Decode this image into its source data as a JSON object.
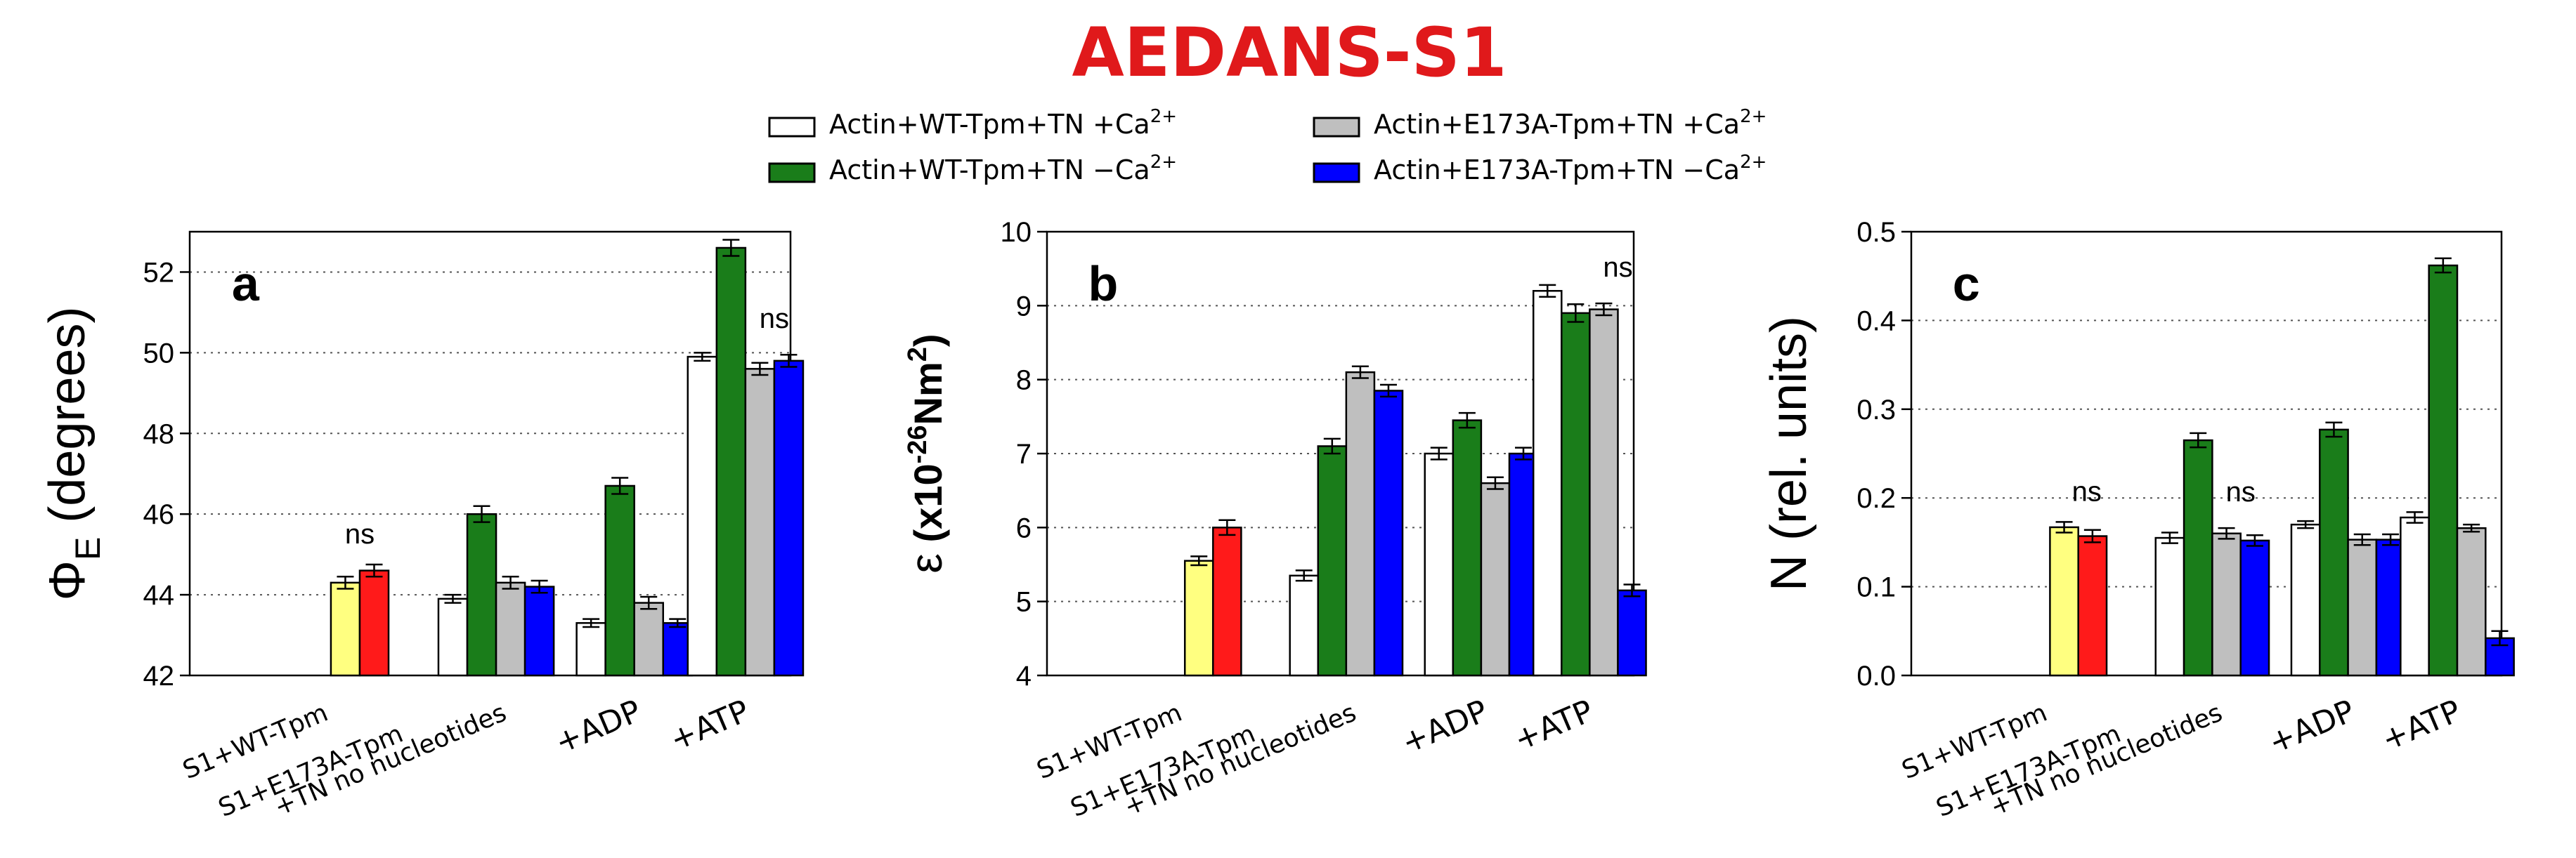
{
  "title": "AEDANS-S1",
  "legend": [
    {
      "label_main": "Actin+WT-Tpm+TN +Ca",
      "label_sup": "2+",
      "color": "#ffffff"
    },
    {
      "label_main": "Actin+E173A-Tpm+TN +Ca",
      "label_sup": "2+",
      "color": "#bfbfbf"
    },
    {
      "label_main": "Actin+WT-Tpm+TN −Ca",
      "label_sup": "2+",
      "color": "#1a7d1a"
    },
    {
      "label_main": "Actin+E173A-Tpm+TN −Ca",
      "label_sup": "2+",
      "color": "#0000ff"
    }
  ],
  "colors": {
    "title": "#e0191b",
    "s1_wt": "#ffff80",
    "s1_e173a": "#ff1a1a",
    "wt_ca": "#ffffff",
    "wt_noca": "#1a7d1a",
    "e173a_ca": "#bfbfbf",
    "e173a_noca": "#0000ff"
  },
  "categories": [
    "S1+WT-Tpm",
    "S1+E173A-Tpm",
    "+TN no nucleotides",
    "+ADP",
    "+ATP"
  ],
  "chart_data": [
    {
      "panel": "a",
      "type": "bar",
      "ylabel_main": "Φ",
      "ylabel_sub": "E",
      "ylabel_rest": " (degrees)",
      "ylim": [
        42,
        53
      ],
      "yticks": [
        "42",
        "44",
        "46",
        "48",
        "50",
        "52"
      ],
      "grid": true,
      "s1_group": {
        "values": [
          44.3,
          44.6
        ],
        "errors": [
          0.15,
          0.15
        ],
        "annotation": "ns"
      },
      "groups": [
        {
          "name": "+TN no nucleotides",
          "values": [
            43.9,
            46.0,
            44.3,
            44.2
          ],
          "errors": [
            0.1,
            0.2,
            0.15,
            0.15
          ]
        },
        {
          "name": "+ADP",
          "values": [
            43.3,
            46.7,
            43.8,
            43.3
          ],
          "errors": [
            0.1,
            0.2,
            0.15,
            0.1
          ]
        },
        {
          "name": "+ATP",
          "values": [
            49.9,
            52.6,
            49.6,
            49.8
          ],
          "errors": [
            0.1,
            0.2,
            0.15,
            0.15
          ],
          "annotation": "ns"
        }
      ]
    },
    {
      "panel": "b",
      "type": "bar",
      "ylabel_main": "ε",
      "ylabel_rest": " (x10",
      "ylabel_sup1": "-26",
      "ylabel_rest2": "Nm",
      "ylabel_sup2": "2",
      "ylabel_end": ")",
      "ylim": [
        4,
        10
      ],
      "yticks": [
        "4",
        "5",
        "6",
        "7",
        "8",
        "9",
        "10"
      ],
      "grid": true,
      "s1_group": {
        "values": [
          5.55,
          6.0
        ],
        "errors": [
          0.06,
          0.1
        ]
      },
      "groups": [
        {
          "name": "+TN no nucleotides",
          "values": [
            5.35,
            7.1,
            8.1,
            7.85
          ],
          "errors": [
            0.07,
            0.1,
            0.08,
            0.08
          ]
        },
        {
          "name": "+ADP",
          "values": [
            7.0,
            7.45,
            6.6,
            7.0
          ],
          "errors": [
            0.08,
            0.1,
            0.08,
            0.08
          ]
        },
        {
          "name": "+ATP",
          "values": [
            9.2,
            8.9,
            8.95,
            5.15
          ],
          "errors": [
            0.08,
            0.12,
            0.08,
            0.08
          ],
          "annotation": "ns"
        }
      ]
    },
    {
      "panel": "c",
      "type": "bar",
      "ylabel_main": "N (rel. units)",
      "ylim": [
        0.0,
        0.5
      ],
      "yticks": [
        "0.0",
        "0.1",
        "0.2",
        "0.3",
        "0.4",
        "0.5"
      ],
      "grid": true,
      "s1_group": {
        "values": [
          0.167,
          0.157
        ],
        "errors": [
          0.006,
          0.007
        ],
        "annotation": "ns"
      },
      "groups": [
        {
          "name": "+TN no nucleotides",
          "values": [
            0.155,
            0.265,
            0.16,
            0.152
          ],
          "errors": [
            0.006,
            0.008,
            0.006,
            0.006
          ],
          "annotation": "ns"
        },
        {
          "name": "+ADP",
          "values": [
            0.17,
            0.277,
            0.153,
            0.153
          ],
          "errors": [
            0.004,
            0.008,
            0.006,
            0.006
          ]
        },
        {
          "name": "+ATP",
          "values": [
            0.178,
            0.462,
            0.166,
            0.042
          ],
          "errors": [
            0.006,
            0.008,
            0.004,
            0.008
          ]
        }
      ]
    }
  ]
}
